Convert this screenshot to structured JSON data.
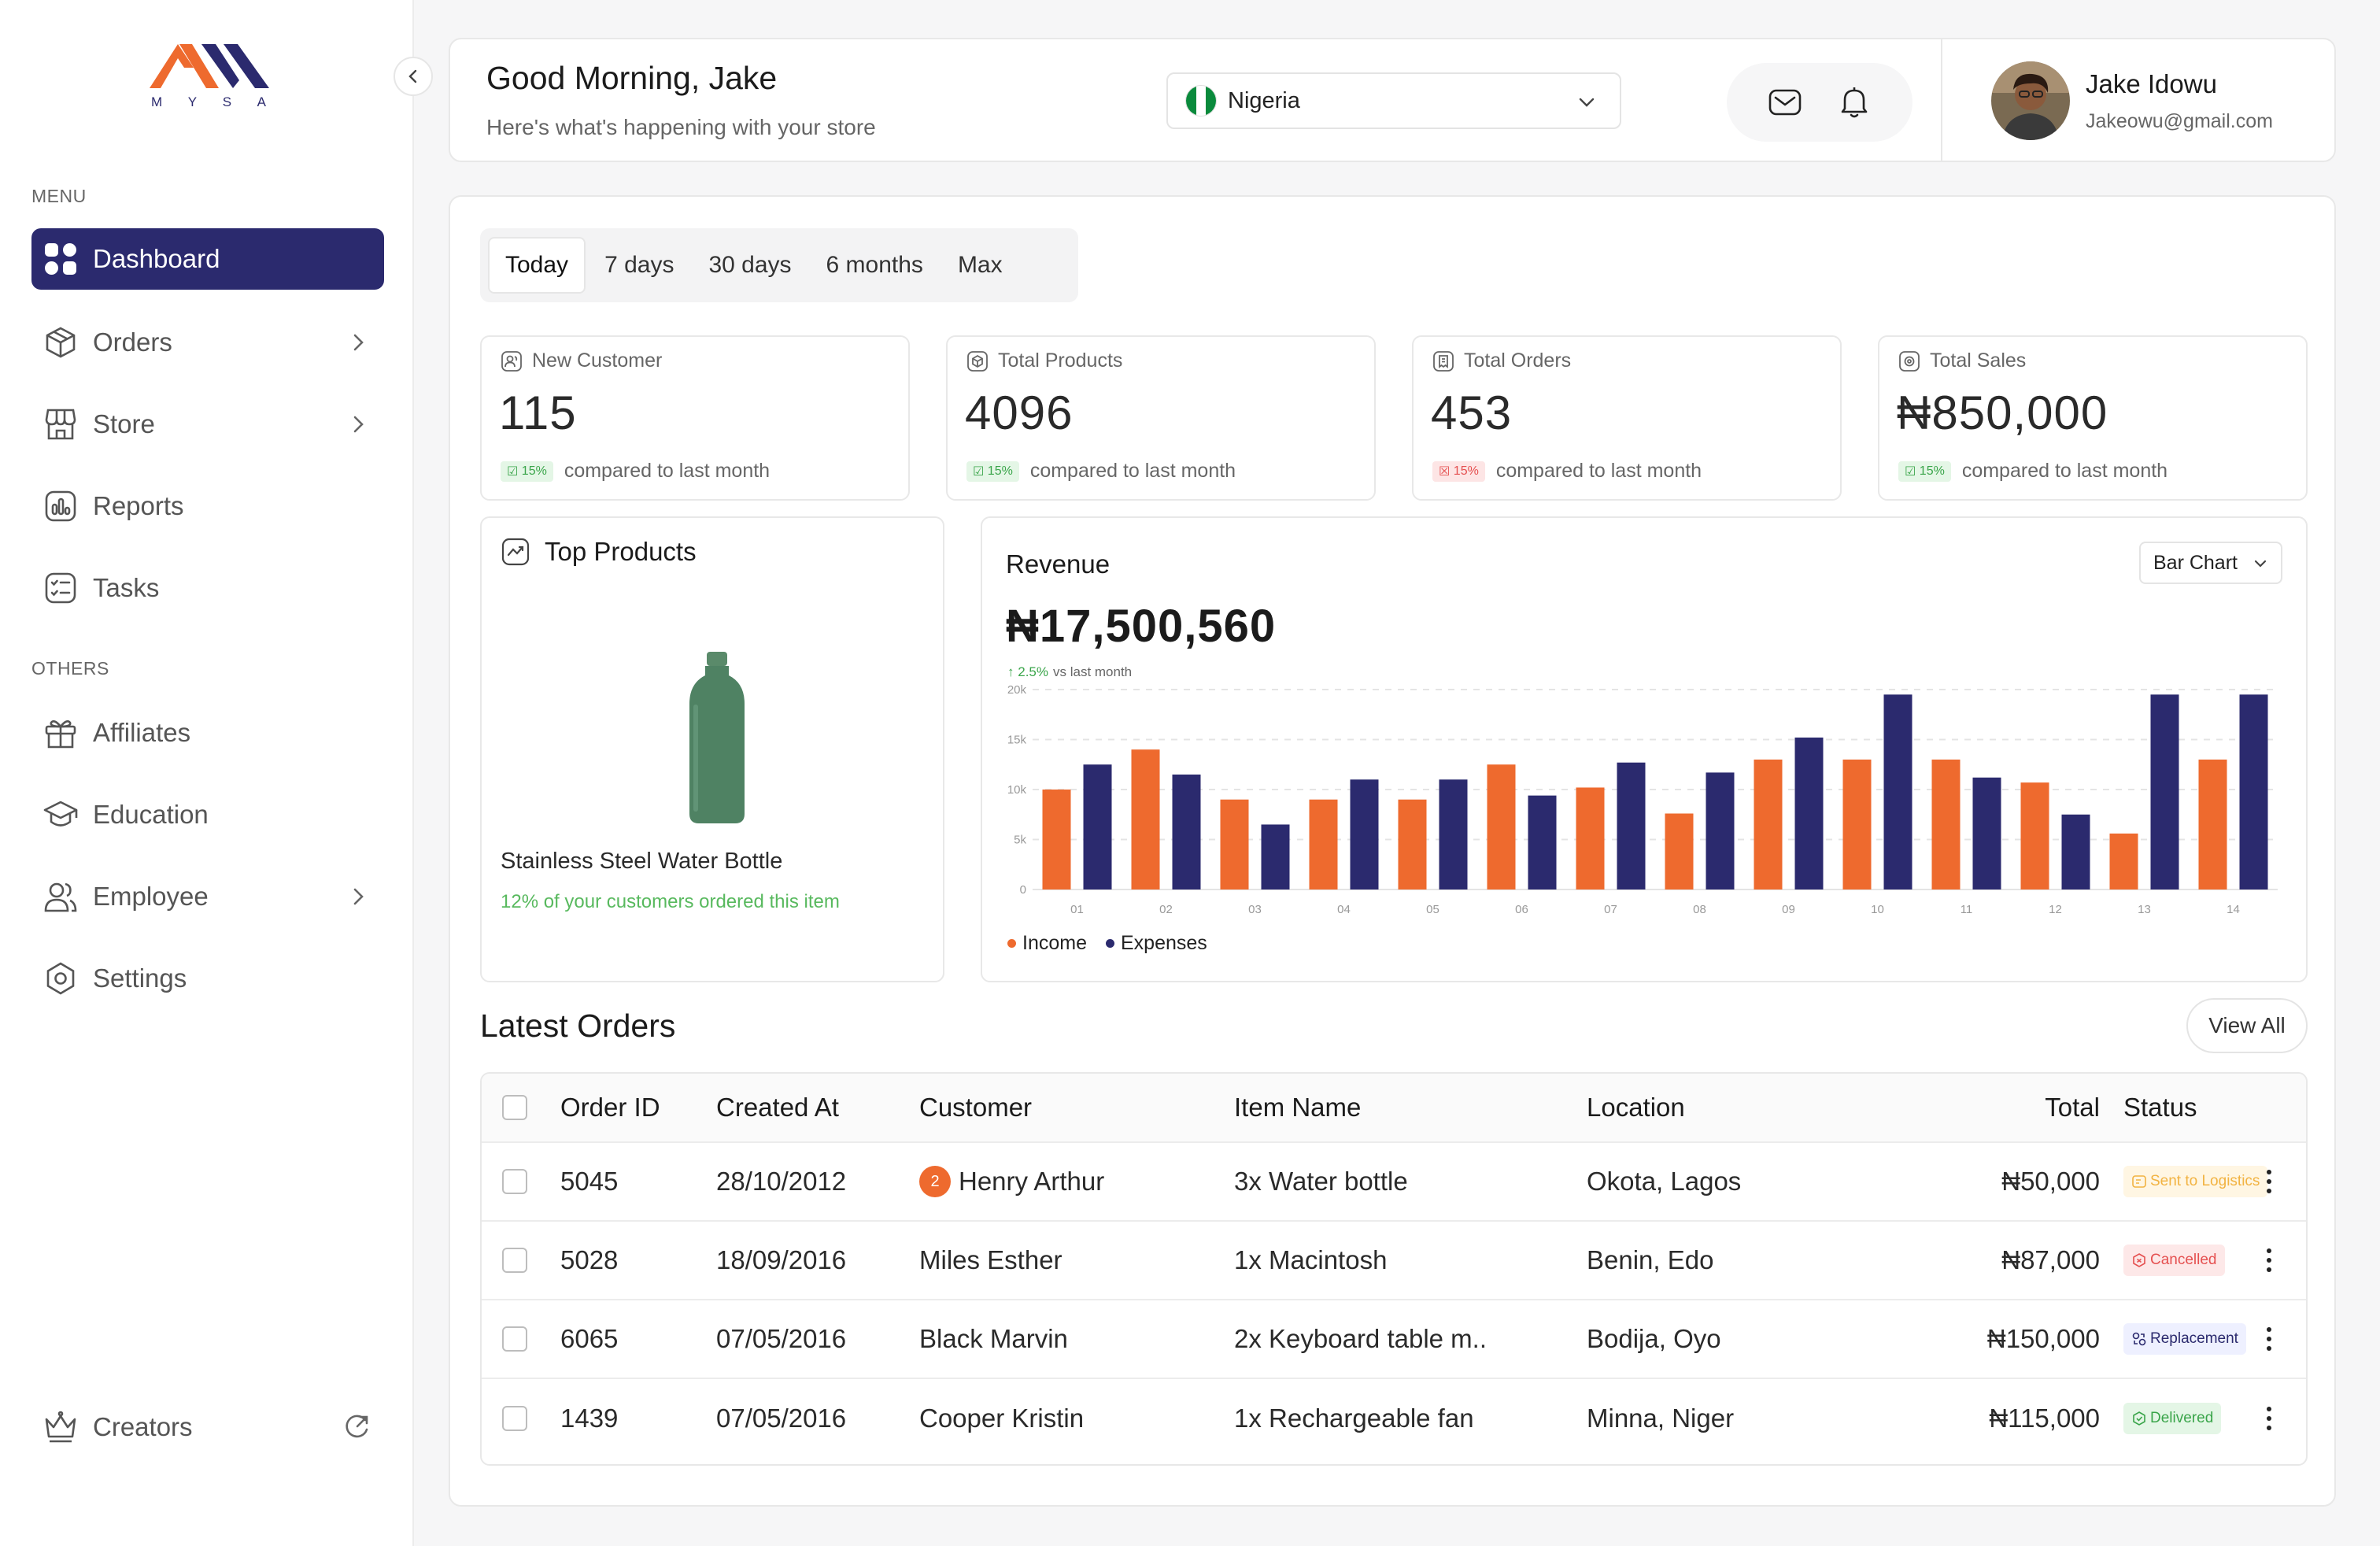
{
  "brand": {
    "logo_text": [
      "M",
      "Y",
      "S",
      "A"
    ],
    "primary_color": "#2b2a6e",
    "accent_color": "#ee6a2e"
  },
  "sidebar": {
    "menu_label": "MENU",
    "others_label": "OTHERS",
    "menu_items": [
      {
        "label": "Dashboard",
        "icon": "dashboard-icon",
        "active": true
      },
      {
        "label": "Orders",
        "icon": "box-icon",
        "has_submenu": true
      },
      {
        "label": "Store",
        "icon": "store-icon",
        "has_submenu": true
      },
      {
        "label": "Reports",
        "icon": "chart-icon"
      },
      {
        "label": "Tasks",
        "icon": "checklist-icon"
      }
    ],
    "other_items": [
      {
        "label": "Affiliates",
        "icon": "gift-icon"
      },
      {
        "label": "Education",
        "icon": "graduation-icon"
      },
      {
        "label": "Employee",
        "icon": "users-icon",
        "has_submenu": true
      },
      {
        "label": "Settings",
        "icon": "gear-icon"
      }
    ],
    "footer_item": {
      "label": "Creators",
      "icon": "crown-icon"
    }
  },
  "header": {
    "greeting": "Good Morning, Jake",
    "subtitle": "Here's what's happening with your store",
    "country": "Nigeria",
    "user_name": "Jake Idowu",
    "user_email": "Jakeowu@gmail.com"
  },
  "range_tabs": [
    {
      "label": "Today",
      "active": true
    },
    {
      "label": "7 days"
    },
    {
      "label": "30 days"
    },
    {
      "label": "6 months"
    },
    {
      "label": "Max"
    }
  ],
  "stats": [
    {
      "label": "New Customer",
      "value": "115",
      "change": "15%",
      "trend": "up",
      "note": "compared to last month"
    },
    {
      "label": "Total Products",
      "value": "4096",
      "change": "15%",
      "trend": "up",
      "note": "compared to last month"
    },
    {
      "label": "Total Orders",
      "value": "453",
      "change": "15%",
      "trend": "down",
      "note": "compared to last month"
    },
    {
      "label": "Total Sales",
      "value": "₦850,000",
      "change": "15%",
      "trend": "up",
      "note": "compared to last month"
    }
  ],
  "top_products": {
    "title": "Top Products",
    "product_name": "Stainless Steel Water Bottle",
    "product_note": "12% of your customers ordered this item"
  },
  "revenue": {
    "title": "Revenue",
    "value": "₦17,500,560",
    "change": "2.5%",
    "change_note": "vs last month",
    "chart_type": "Bar Chart"
  },
  "chart_data": {
    "type": "bar",
    "categories": [
      "01",
      "02",
      "03",
      "04",
      "05",
      "06",
      "07",
      "08",
      "09",
      "10",
      "11",
      "12",
      "13",
      "14"
    ],
    "y_ticks": [
      "0",
      "5k",
      "10k",
      "15k",
      "20k"
    ],
    "ylim": [
      0,
      20000
    ],
    "series": [
      {
        "name": "Income",
        "color": "#ee6a2e",
        "values": [
          10000,
          14000,
          9000,
          9000,
          9000,
          12500,
          10200,
          7600,
          13000,
          13000,
          13000,
          10700,
          5600,
          13000
        ]
      },
      {
        "name": "Expenses",
        "color": "#2b2a6e",
        "values": [
          12500,
          11500,
          6500,
          11000,
          11000,
          9400,
          12700,
          11700,
          15200,
          19500,
          11200,
          7500,
          19500,
          19500
        ]
      }
    ],
    "legend": "bottom-left",
    "grid": true
  },
  "orders": {
    "title": "Latest Orders",
    "view_all": "View All",
    "columns": [
      "Order ID",
      "Created At",
      "Customer",
      "Item Name",
      "Location",
      "Total",
      "Status"
    ],
    "rows": [
      {
        "id": "5045",
        "created": "28/10/2012",
        "customer": "Henry Arthur",
        "badge": "2",
        "item": "3x Water bottle",
        "location": "Okota, Lagos",
        "total": "₦50,000",
        "status": "Sent to Logistics",
        "status_type": "logistics"
      },
      {
        "id": "5028",
        "created": "18/09/2016",
        "customer": "Miles Esther",
        "item": "1x Macintosh",
        "location": "Benin, Edo",
        "total": "₦87,000",
        "status": "Cancelled",
        "status_type": "cancelled"
      },
      {
        "id": "6065",
        "created": "07/05/2016",
        "customer": "Black Marvin",
        "item": "2x Keyboard table m..",
        "location": "Bodija, Oyo",
        "total": "₦150,000",
        "status": "Replacement",
        "status_type": "replacement"
      },
      {
        "id": "1439",
        "created": "07/05/2016",
        "customer": "Cooper Kristin",
        "item": "1x Rechargeable fan",
        "location": "Minna, Niger",
        "total": "₦115,000",
        "status": "Delivered",
        "status_type": "delivered"
      }
    ]
  }
}
